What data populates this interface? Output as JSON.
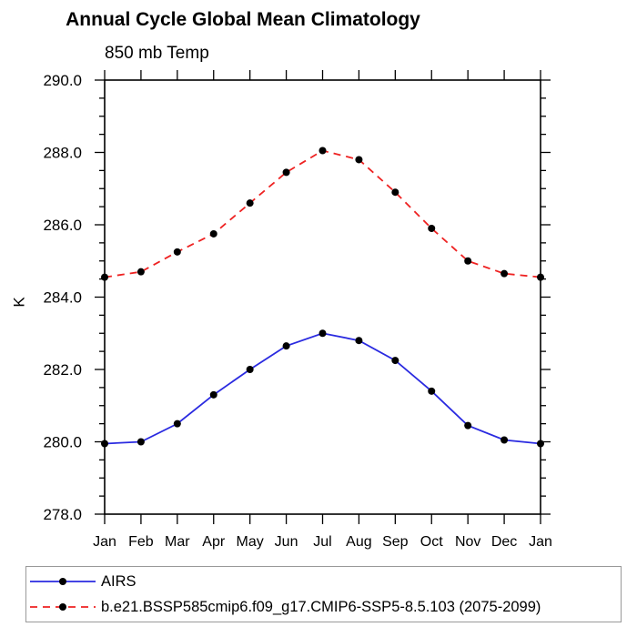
{
  "chart": {
    "title": "Annual Cycle Global Mean Climatology",
    "subtitle": "850 mb Temp",
    "ylabel": "K"
  },
  "legend": {
    "position": "bottom",
    "border": true
  },
  "chart_data": {
    "type": "line",
    "title": "Annual Cycle Global Mean Climatology",
    "subtitle": "850 mb Temp",
    "xlabel": "",
    "ylabel": "K",
    "categories": [
      "Jan",
      "Feb",
      "Mar",
      "Apr",
      "May",
      "Jun",
      "Jul",
      "Aug",
      "Sep",
      "Oct",
      "Nov",
      "Dec",
      "Jan"
    ],
    "ylim": [
      278.0,
      290.0
    ],
    "ytick_labels": [
      "290.0",
      "288.0",
      "286.0",
      "284.0",
      "282.0",
      "280.0",
      "278.0"
    ],
    "ytick_interval": 2.0,
    "ytick_minor_interval": 0.5,
    "grid": false,
    "legend_position": "bottom",
    "axis_color": "#000000",
    "marker": "filled-circle",
    "marker_color": "#000000",
    "series": [
      {
        "name": "AIRS",
        "color": "#2a2ae0",
        "line_style": "solid",
        "dasharray": "none",
        "marker_color": "#000000",
        "values": [
          279.95,
          280.0,
          280.5,
          281.3,
          282.0,
          282.65,
          283.0,
          282.8,
          282.25,
          281.4,
          280.45,
          280.05,
          279.95
        ]
      },
      {
        "name": "b.e21.BSSP585cmip6.f09_g17.CMIP6-SSP5-8.5.103 (2075-2099)",
        "color": "#ee2222",
        "line_style": "dashed",
        "dasharray": "8 6",
        "marker_color": "#000000",
        "values": [
          284.55,
          284.7,
          285.25,
          285.75,
          286.6,
          287.45,
          288.05,
          287.8,
          286.9,
          285.9,
          285.0,
          284.65,
          284.55
        ]
      }
    ]
  }
}
